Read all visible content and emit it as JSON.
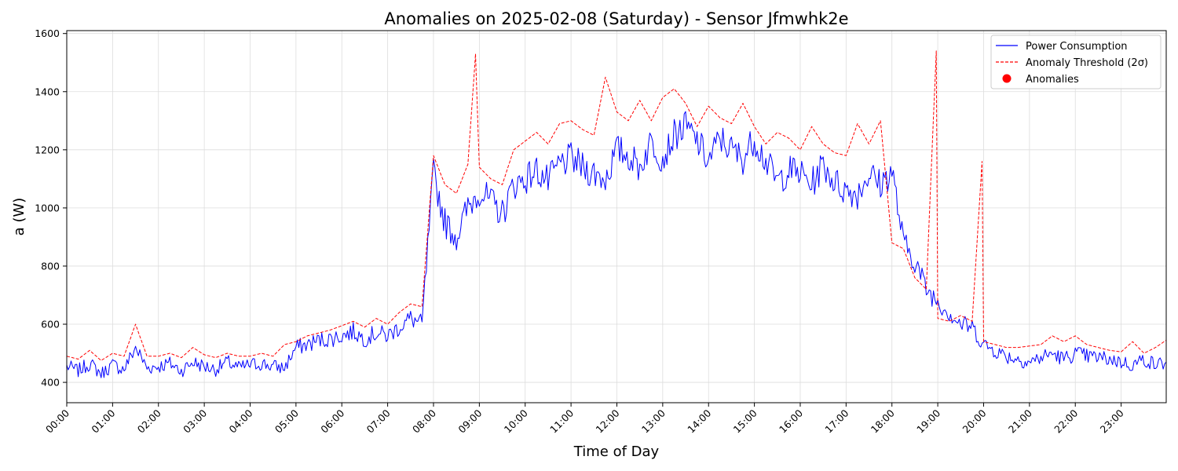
{
  "chart_data": {
    "type": "line",
    "title": "Anomalies on 2025-02-08 (Saturday) - Sensor Jfmwhk2e",
    "xlabel": "Time of Day",
    "ylabel": "a (W)",
    "xlim": [
      "00:00",
      "23:59"
    ],
    "ylim": [
      330,
      1610
    ],
    "grid": true,
    "legend_position": "top-right",
    "x_ticks": [
      "00:00",
      "01:00",
      "02:00",
      "03:00",
      "04:00",
      "05:00",
      "06:00",
      "07:00",
      "08:00",
      "09:00",
      "10:00",
      "11:00",
      "12:00",
      "13:00",
      "14:00",
      "15:00",
      "16:00",
      "17:00",
      "18:00",
      "19:00",
      "20:00",
      "21:00",
      "22:00",
      "23:00"
    ],
    "y_ticks": [
      400,
      600,
      800,
      1000,
      1200,
      1400,
      1600
    ],
    "legend": [
      "Power Consumption",
      "Anomaly Threshold (2σ)",
      "Anomalies"
    ],
    "colors": {
      "power": "#0000ff",
      "threshold": "#ff0000",
      "anomaly": "#ff0000",
      "grid": "#dddddd"
    },
    "series": [
      {
        "name": "Power Consumption",
        "style": "solid",
        "x": [
          "00:00",
          "00:15",
          "00:30",
          "00:45",
          "01:00",
          "01:15",
          "01:30",
          "01:45",
          "02:00",
          "02:15",
          "02:30",
          "02:45",
          "03:00",
          "03:15",
          "03:30",
          "03:45",
          "04:00",
          "04:15",
          "04:30",
          "04:45",
          "05:00",
          "05:15",
          "05:30",
          "05:45",
          "06:00",
          "06:15",
          "06:30",
          "06:45",
          "07:00",
          "07:15",
          "07:30",
          "07:45",
          "08:00",
          "08:15",
          "08:30",
          "08:45",
          "09:00",
          "09:15",
          "09:30",
          "09:45",
          "10:00",
          "10:15",
          "10:30",
          "10:45",
          "11:00",
          "11:15",
          "11:30",
          "11:45",
          "12:00",
          "12:15",
          "12:30",
          "12:45",
          "13:00",
          "13:15",
          "13:30",
          "13:45",
          "14:00",
          "14:15",
          "14:30",
          "14:45",
          "15:00",
          "15:15",
          "15:30",
          "15:45",
          "16:00",
          "16:15",
          "16:30",
          "16:45",
          "17:00",
          "17:15",
          "17:30",
          "17:45",
          "18:00",
          "18:15",
          "18:30",
          "18:45",
          "19:00",
          "19:15",
          "19:30",
          "19:45",
          "20:00",
          "20:15",
          "20:30",
          "20:45",
          "21:00",
          "21:15",
          "21:30",
          "21:45",
          "22:00",
          "22:15",
          "22:30",
          "22:45",
          "23:00",
          "23:15",
          "23:30",
          "23:45",
          "23:59"
        ],
        "y": [
          455,
          440,
          465,
          430,
          460,
          445,
          520,
          450,
          455,
          465,
          440,
          470,
          455,
          445,
          470,
          450,
          460,
          465,
          455,
          450,
          520,
          530,
          545,
          550,
          560,
          575,
          550,
          570,
          560,
          590,
          620,
          600,
          1120,
          950,
          900,
          1000,
          1060,
          1020,
          980,
          1080,
          1100,
          1130,
          1090,
          1150,
          1170,
          1140,
          1120,
          1100,
          1200,
          1180,
          1140,
          1230,
          1170,
          1250,
          1280,
          1230,
          1160,
          1240,
          1200,
          1170,
          1240,
          1160,
          1090,
          1130,
          1120,
          1080,
          1150,
          1090,
          1060,
          1050,
          1120,
          1080,
          1130,
          880,
          820,
          720,
          680,
          640,
          600,
          590,
          530,
          510,
          490,
          480,
          470,
          485,
          500,
          480,
          500,
          490,
          485,
          480,
          470,
          460,
          480,
          460,
          470
        ],
        "fine_noise": 55
      },
      {
        "name": "Anomaly Threshold (2σ)",
        "style": "dashed",
        "x": [
          "00:00",
          "00:15",
          "00:30",
          "00:45",
          "01:00",
          "01:15",
          "01:30",
          "01:45",
          "02:00",
          "02:15",
          "02:30",
          "02:45",
          "03:00",
          "03:15",
          "03:30",
          "03:45",
          "04:00",
          "04:15",
          "04:30",
          "04:45",
          "05:00",
          "05:15",
          "05:30",
          "05:45",
          "06:00",
          "06:15",
          "06:30",
          "06:45",
          "07:00",
          "07:15",
          "07:30",
          "07:45",
          "08:00",
          "08:15",
          "08:30",
          "08:45",
          "08:55",
          "09:00",
          "09:15",
          "09:30",
          "09:45",
          "10:00",
          "10:15",
          "10:30",
          "10:45",
          "11:00",
          "11:15",
          "11:30",
          "11:45",
          "12:00",
          "12:15",
          "12:30",
          "12:45",
          "13:00",
          "13:15",
          "13:30",
          "13:45",
          "14:00",
          "14:15",
          "14:30",
          "14:45",
          "15:00",
          "15:15",
          "15:30",
          "15:45",
          "16:00",
          "16:15",
          "16:30",
          "16:45",
          "17:00",
          "17:15",
          "17:30",
          "17:45",
          "18:00",
          "18:15",
          "18:30",
          "18:45",
          "18:58",
          "19:00",
          "19:15",
          "19:30",
          "19:45",
          "19:58",
          "20:00",
          "20:15",
          "20:30",
          "20:45",
          "21:00",
          "21:15",
          "21:30",
          "21:45",
          "22:00",
          "22:15",
          "22:30",
          "22:45",
          "23:00",
          "23:15",
          "23:30",
          "23:45",
          "23:59"
        ],
        "y": [
          490,
          480,
          510,
          475,
          500,
          490,
          600,
          490,
          490,
          500,
          485,
          520,
          495,
          485,
          500,
          490,
          490,
          500,
          490,
          530,
          540,
          560,
          570,
          580,
          595,
          610,
          590,
          620,
          600,
          640,
          670,
          660,
          1180,
          1080,
          1050,
          1150,
          1530,
          1140,
          1100,
          1080,
          1200,
          1230,
          1260,
          1220,
          1290,
          1300,
          1270,
          1250,
          1450,
          1330,
          1300,
          1370,
          1300,
          1380,
          1410,
          1360,
          1280,
          1350,
          1310,
          1290,
          1360,
          1280,
          1220,
          1260,
          1240,
          1200,
          1280,
          1220,
          1190,
          1180,
          1290,
          1220,
          1300,
          880,
          860,
          760,
          720,
          1540,
          620,
          610,
          630,
          610,
          1160,
          540,
          530,
          520,
          520,
          525,
          530,
          560,
          540,
          560,
          530,
          520,
          510,
          505,
          540,
          500,
          520,
          545
        ]
      }
    ],
    "anomalies": []
  }
}
